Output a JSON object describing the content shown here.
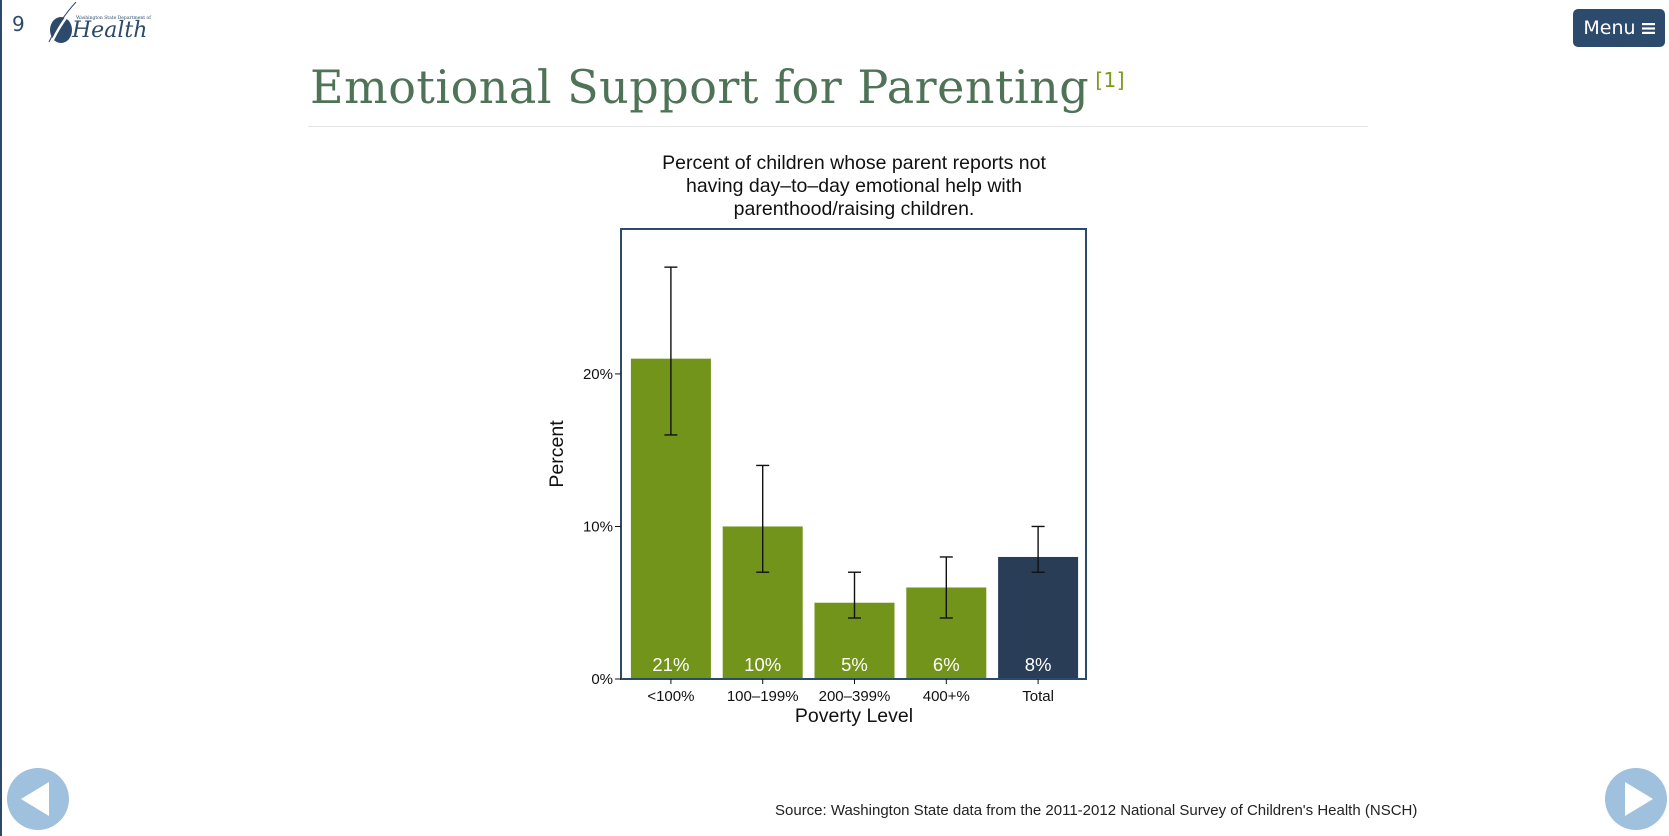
{
  "slide": {
    "number": "9"
  },
  "logo": {
    "small_text": "Washington State Department of",
    "word": "Health"
  },
  "menu": {
    "label": "Menu",
    "icon": "hamburger-icon"
  },
  "page": {
    "title": "Emotional Support for Parenting",
    "footnote_ref": "[1]"
  },
  "colors": {
    "title": "#4e7357",
    "bar_green": "#72941a",
    "bar_total": "#2a3d57",
    "frame": "#2c4a6b",
    "nav": "#9fc1dd"
  },
  "chart_data": {
    "type": "bar",
    "title_lines": [
      "Percent of children whose parent reports not",
      "having day–to–day emotional help with",
      "parenthood/raising children."
    ],
    "xlabel": "Poverty Level",
    "ylabel": "Percent",
    "categories": [
      "<100%",
      "100–199%",
      "200–399%",
      "400+%",
      "Total"
    ],
    "values": [
      21,
      10,
      5,
      6,
      8
    ],
    "value_labels": [
      "21%",
      "10%",
      "5%",
      "6%",
      "8%"
    ],
    "error_low": [
      16,
      7,
      4,
      4,
      7
    ],
    "error_high": [
      27,
      14,
      7,
      8,
      10
    ],
    "bar_colors": [
      "#72941a",
      "#72941a",
      "#72941a",
      "#72941a",
      "#2a3d57"
    ],
    "ylim": [
      0,
      29.5
    ],
    "yticks": [
      0,
      10,
      20
    ],
    "ytick_labels": [
      "0%",
      "10%",
      "20%"
    ],
    "grid": false
  },
  "source": {
    "text": "Source: Washington State data from the 2011-2012 National Survey of Children's Health (NSCH)"
  },
  "nav": {
    "prev_icon": "previous-arrow-icon",
    "next_icon": "next-arrow-icon"
  }
}
